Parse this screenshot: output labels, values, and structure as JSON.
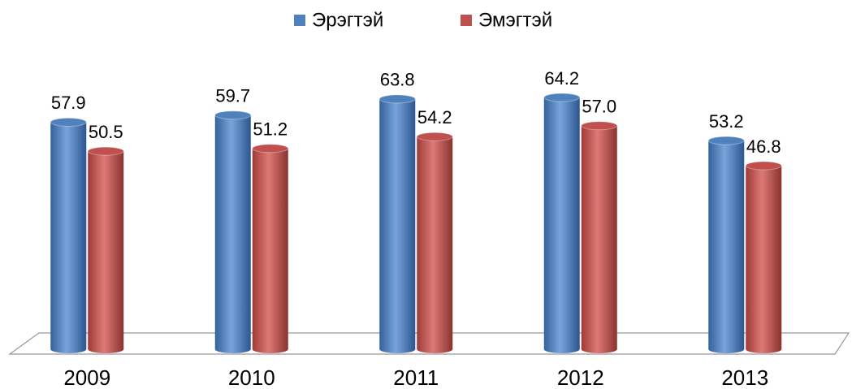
{
  "chart_data": {
    "type": "bar",
    "categories": [
      "2009",
      "2010",
      "2011",
      "2012",
      "2013"
    ],
    "series": [
      {
        "name": "Эрэгтэй",
        "color": "#4f81bd",
        "values": [
          57.9,
          59.7,
          63.8,
          64.2,
          53.2
        ],
        "value_labels": [
          "57.9",
          "59.7",
          "63.8",
          "64.2",
          "53.2"
        ]
      },
      {
        "name": "Эмэгтэй",
        "color": "#c0504d",
        "values": [
          50.5,
          51.2,
          54.2,
          57.0,
          46.8
        ],
        "value_labels": [
          "50.5",
          "51.2",
          "54.2",
          "57.0",
          "46.8"
        ]
      }
    ],
    "legend": "top"
  }
}
